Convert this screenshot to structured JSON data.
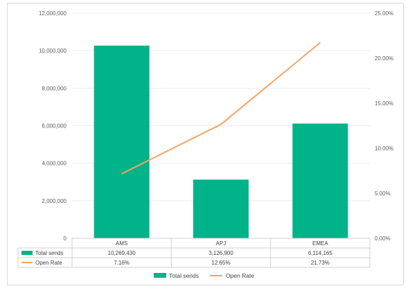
{
  "chart_data": {
    "type": "bar",
    "categories": [
      "AMS",
      "APJ",
      "EMEA"
    ],
    "series": [
      {
        "name": "Total sends",
        "type": "bar",
        "axis": "left",
        "values": [
          10269430,
          3126900,
          6114165
        ],
        "labels": [
          "10,269,430",
          "3,126,900",
          "6,114,165"
        ],
        "color": "#00b388"
      },
      {
        "name": "Open Rate",
        "type": "line",
        "axis": "right",
        "values": [
          7.16,
          12.65,
          21.73
        ],
        "labels": [
          "7.16%",
          "12.65%",
          "21.73%"
        ],
        "color": "#f4a460"
      }
    ],
    "y_left": {
      "min": 0,
      "max": 12000000,
      "ticks": [
        "0",
        "2,000,000",
        "4,000,000",
        "6,000,000",
        "8,000,000",
        "10,000,000",
        "12,000,000"
      ]
    },
    "y_right": {
      "min": 0,
      "max": 25,
      "ticks": [
        "0.00%",
        "5.00%",
        "10.00%",
        "15.00%",
        "20.00%",
        "25.00%"
      ]
    },
    "grid": true,
    "legend_position": "bottom",
    "data_table": true
  }
}
